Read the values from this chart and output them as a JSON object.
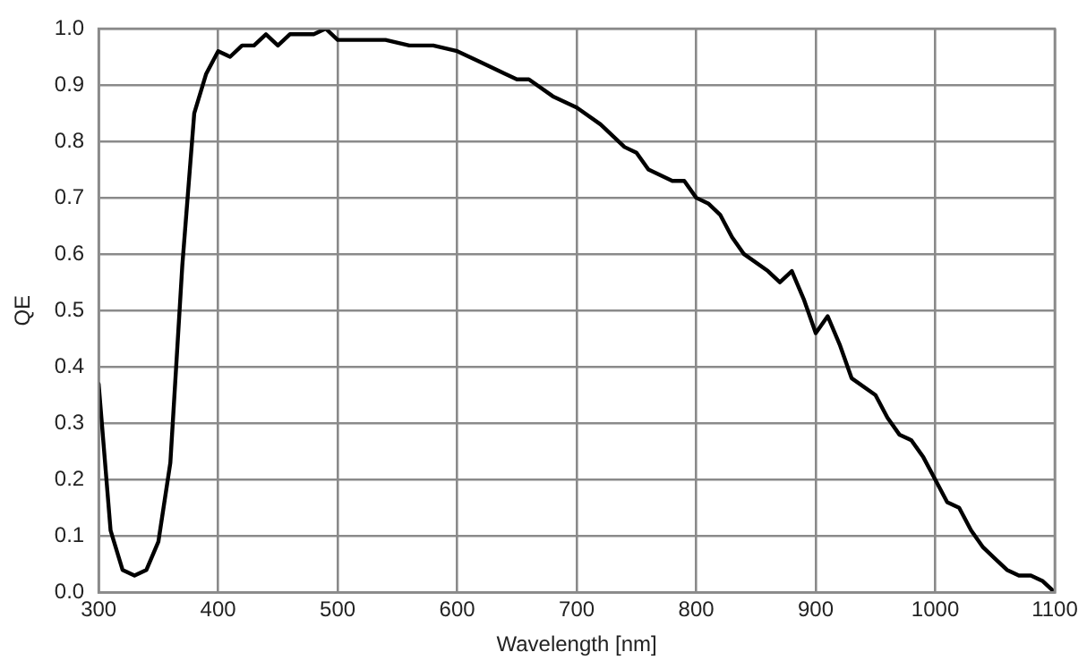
{
  "chart_data": {
    "type": "line",
    "xlabel": "Wavelength [nm]",
    "ylabel": "QE",
    "series": [
      {
        "color": "#000000",
        "x": [
          300,
          310,
          320,
          330,
          340,
          350,
          360,
          370,
          380,
          390,
          400,
          410,
          420,
          430,
          440,
          450,
          460,
          470,
          480,
          490,
          500,
          520,
          540,
          560,
          580,
          600,
          620,
          640,
          650,
          660,
          680,
          700,
          720,
          740,
          750,
          760,
          780,
          790,
          800,
          810,
          820,
          830,
          840,
          860,
          870,
          880,
          890,
          900,
          910,
          920,
          930,
          950,
          960,
          970,
          980,
          990,
          1000,
          1010,
          1020,
          1030,
          1040,
          1050,
          1060,
          1070,
          1080,
          1090,
          1100
        ],
        "values": [
          0.37,
          0.11,
          0.04,
          0.03,
          0.04,
          0.09,
          0.23,
          0.58,
          0.85,
          0.92,
          0.96,
          0.95,
          0.97,
          0.97,
          0.99,
          0.97,
          0.99,
          0.99,
          0.99,
          1.0,
          0.98,
          0.98,
          0.98,
          0.97,
          0.97,
          0.96,
          0.94,
          0.92,
          0.91,
          0.91,
          0.88,
          0.86,
          0.83,
          0.79,
          0.78,
          0.75,
          0.73,
          0.73,
          0.7,
          0.69,
          0.67,
          0.63,
          0.6,
          0.57,
          0.55,
          0.57,
          0.52,
          0.46,
          0.49,
          0.44,
          0.38,
          0.35,
          0.31,
          0.28,
          0.27,
          0.24,
          0.2,
          0.16,
          0.15,
          0.11,
          0.08,
          0.06,
          0.04,
          0.03,
          0.03,
          0.02,
          0.0
        ]
      }
    ],
    "xlim": [
      300,
      1100
    ],
    "xticks": [
      300,
      400,
      500,
      600,
      700,
      800,
      900,
      1000,
      1100
    ],
    "ylim": [
      0,
      1
    ],
    "yticks": [
      {
        "value": 0,
        "label": "0.0"
      },
      0.1,
      0.2,
      0.3,
      0.4,
      0.5,
      0.6,
      0.7,
      0.8,
      0.9,
      {
        "value": 1,
        "label": "1.0"
      }
    ],
    "grid": true,
    "legend": false,
    "marker": "none",
    "line_style": "solid"
  }
}
